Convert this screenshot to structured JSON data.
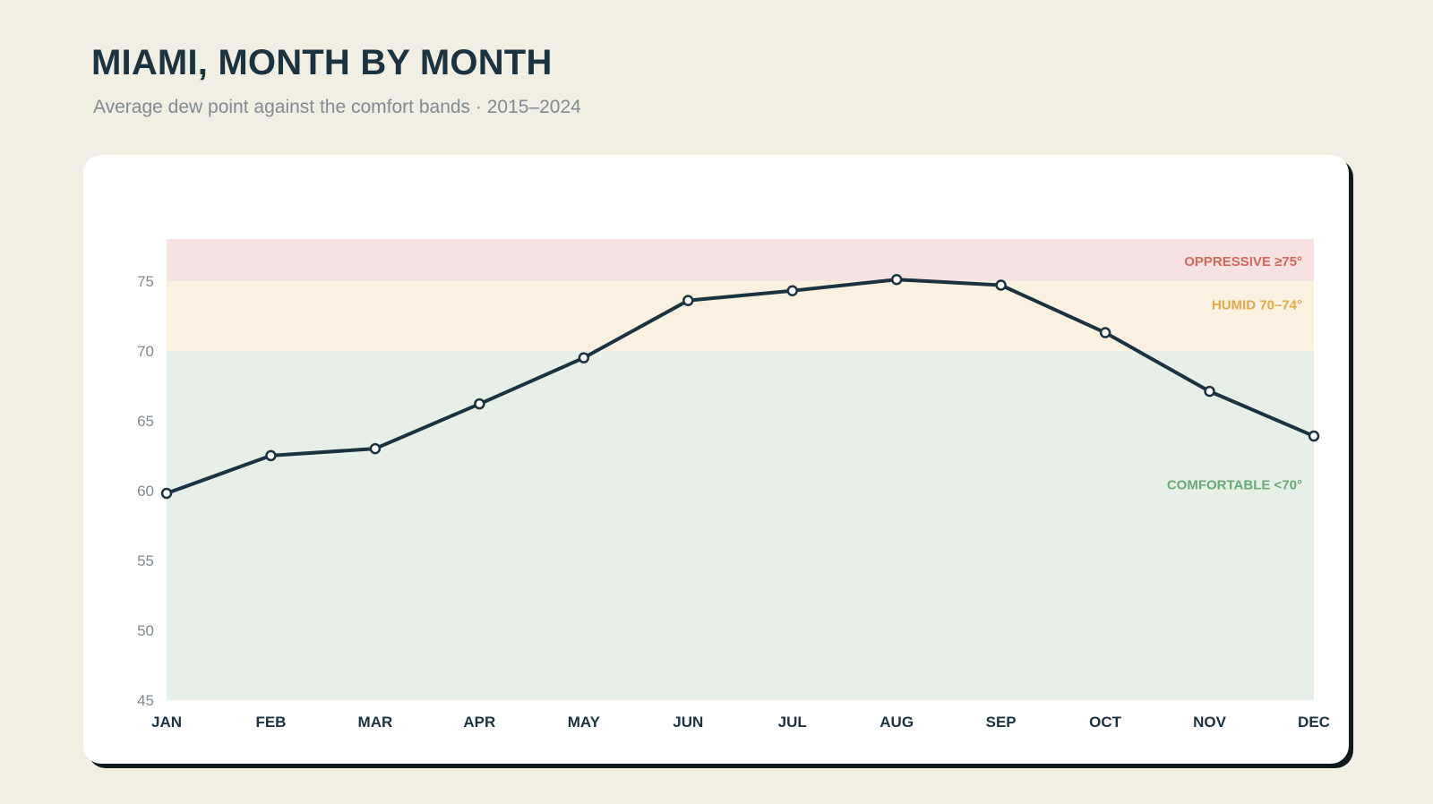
{
  "header": {
    "title": "MIAMI, MONTH BY MONTH",
    "subtitle": "Average dew point against the comfort bands · 2015–2024"
  },
  "chart_data": {
    "type": "line",
    "title": "MIAMI, MONTH BY MONTH",
    "subtitle": "Average dew point against the comfort bands · 2015–2024",
    "x": [
      "JAN",
      "FEB",
      "MAR",
      "APR",
      "MAY",
      "JUN",
      "JUL",
      "AUG",
      "SEP",
      "OCT",
      "NOV",
      "DEC"
    ],
    "series": [
      {
        "values": [
          59.8,
          62.5,
          63.0,
          66.2,
          69.5,
          73.6,
          74.3,
          75.1,
          74.7,
          71.3,
          67.1,
          63.9
        ]
      }
    ],
    "ylim": [
      45,
      78
    ],
    "yticks": [
      45,
      50,
      55,
      60,
      65,
      70,
      75
    ],
    "xlabel": "",
    "ylabel": "",
    "grid": false,
    "bands": [
      {
        "label": "COMFORTABLE <70°",
        "from": 45,
        "to": 70,
        "fill": "#e6f0e8",
        "text_color": "#6aaa79"
      },
      {
        "label": "HUMID 70–74°",
        "from": 70,
        "to": 75,
        "fill": "#faf1e0",
        "text_color": "#e2a84a"
      },
      {
        "label": "OPPRESSIVE ≥75°",
        "from": 75,
        "to": 78,
        "fill": "#f6e3e1",
        "text_color": "#d1685b"
      }
    ],
    "line_color": "#1b3340"
  }
}
